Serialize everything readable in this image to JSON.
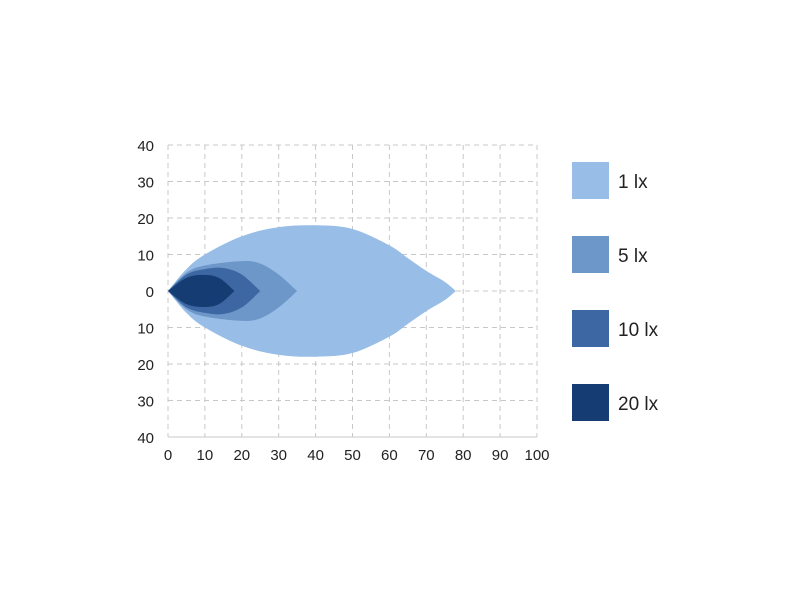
{
  "chart_data": {
    "type": "area",
    "title": "",
    "xlabel": "",
    "ylabel": "",
    "xlim": [
      0,
      100
    ],
    "ylim": [
      -40,
      40
    ],
    "x_ticks": [
      0,
      10,
      20,
      30,
      40,
      50,
      60,
      70,
      80,
      90,
      100
    ],
    "x_tick_labels": [
      "0",
      "10",
      "20",
      "30",
      "40",
      "50",
      "60",
      "70",
      "80",
      "90",
      "100"
    ],
    "y_ticks": [
      40,
      30,
      20,
      10,
      0,
      -10,
      -20,
      -30,
      -40
    ],
    "y_tick_labels": [
      "40",
      "30",
      "20",
      "10",
      "0",
      "10",
      "20",
      "30",
      "40"
    ],
    "grid": true,
    "legend_placement": "right",
    "symmetric_about_y0": true,
    "series": [
      {
        "name": "1 lx",
        "color": "#98bde6",
        "profile": [
          [
            0,
            0
          ],
          [
            5,
            6
          ],
          [
            10,
            10
          ],
          [
            20,
            15
          ],
          [
            30,
            17.5
          ],
          [
            40,
            18
          ],
          [
            50,
            17
          ],
          [
            60,
            12.5
          ],
          [
            65,
            9
          ],
          [
            70,
            5.5
          ],
          [
            75,
            2.5
          ],
          [
            78,
            0
          ]
        ]
      },
      {
        "name": "5 lx",
        "color": "#6d96c9",
        "profile": [
          [
            0,
            0
          ],
          [
            5,
            5
          ],
          [
            10,
            7
          ],
          [
            20,
            8.2
          ],
          [
            25,
            7.5
          ],
          [
            30,
            4.5
          ],
          [
            35,
            0
          ]
        ]
      },
      {
        "name": "10 lx",
        "color": "#3d67a3",
        "profile": [
          [
            0,
            0
          ],
          [
            5,
            4.5
          ],
          [
            10,
            6
          ],
          [
            15,
            6.3
          ],
          [
            20,
            4.5
          ],
          [
            25,
            0
          ]
        ]
      },
      {
        "name": "20 lx",
        "color": "#163d73",
        "profile": [
          [
            0,
            0
          ],
          [
            5,
            3.6
          ],
          [
            10,
            4.4
          ],
          [
            14,
            3.5
          ],
          [
            18,
            0
          ]
        ]
      }
    ]
  }
}
